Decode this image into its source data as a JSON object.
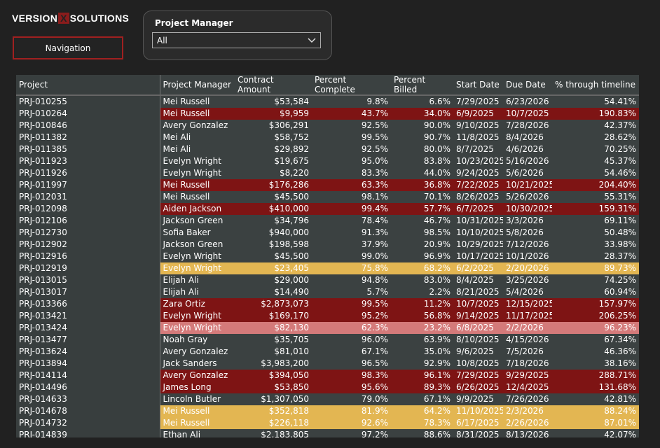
{
  "header": {
    "logo": [
      "VERSION",
      "X",
      "SOLUTIONS"
    ],
    "navigation_button": "Navigation"
  },
  "slicer": {
    "title": "Project Manager",
    "value": "All"
  },
  "table": {
    "columns": [
      "Project",
      "Project Manager",
      "Contract Amount",
      "Percent Complete",
      "Percent Billed",
      "Start Date",
      "Due Date",
      "% through timeline"
    ],
    "rows": [
      [
        "PRJ-010255",
        "Mei Russell",
        "$53,584",
        "9.8%",
        "6.6%",
        "7/29/2025",
        "6/23/2026",
        "54.41%"
      ],
      [
        "PRJ-010264",
        "Mei Russell",
        "$9,959",
        "43.7%",
        "34.0%",
        "6/9/2025",
        "10/7/2025",
        "190.83%"
      ],
      [
        "PRJ-010846",
        "Avery Gonzalez",
        "$306,291",
        "92.5%",
        "90.0%",
        "9/10/2025",
        "7/28/2026",
        "42.37%"
      ],
      [
        "PRJ-011382",
        "Mei Ali",
        "$58,752",
        "99.5%",
        "90.7%",
        "11/8/2025",
        "8/4/2026",
        "28.62%"
      ],
      [
        "PRJ-011385",
        "Mei Ali",
        "$29,892",
        "92.5%",
        "80.0%",
        "8/7/2025",
        "4/6/2026",
        "70.25%"
      ],
      [
        "PRJ-011923",
        "Evelyn Wright",
        "$19,675",
        "95.0%",
        "83.8%",
        "10/23/2025",
        "5/16/2026",
        "45.37%"
      ],
      [
        "PRJ-011926",
        "Evelyn Wright",
        "$8,220",
        "83.3%",
        "44.0%",
        "9/24/2025",
        "5/6/2026",
        "54.46%"
      ],
      [
        "PRJ-011997",
        "Mei Russell",
        "$176,286",
        "63.3%",
        "36.8%",
        "7/22/2025",
        "10/21/2025",
        "204.40%"
      ],
      [
        "PRJ-012031",
        "Mei Russell",
        "$45,500",
        "98.1%",
        "70.1%",
        "8/26/2025",
        "5/26/2026",
        "55.31%"
      ],
      [
        "PRJ-012098",
        "Aiden Jackson",
        "$410,000",
        "99.4%",
        "57.7%",
        "6/7/2025",
        "10/30/2025",
        "159.31%"
      ],
      [
        "PRJ-012106",
        "Jackson Green",
        "$34,796",
        "78.4%",
        "46.7%",
        "10/31/2025",
        "3/3/2026",
        "69.11%"
      ],
      [
        "PRJ-012730",
        "Sofia Baker",
        "$940,000",
        "91.3%",
        "98.5%",
        "10/10/2025",
        "5/8/2026",
        "50.48%"
      ],
      [
        "PRJ-012902",
        "Jackson Green",
        "$198,598",
        "37.9%",
        "20.9%",
        "10/29/2025",
        "7/12/2026",
        "33.98%"
      ],
      [
        "PRJ-012916",
        "Evelyn Wright",
        "$45,500",
        "99.0%",
        "96.9%",
        "10/17/2025",
        "10/1/2026",
        "28.37%"
      ],
      [
        "PRJ-012919",
        "Evelyn Wright",
        "$23,405",
        "75.8%",
        "68.2%",
        "6/2/2025",
        "2/20/2026",
        "89.73%"
      ],
      [
        "PRJ-013015",
        "Elijah Ali",
        "$29,000",
        "94.8%",
        "83.0%",
        "8/4/2025",
        "3/25/2026",
        "74.25%"
      ],
      [
        "PRJ-013017",
        "Elijah Ali",
        "$14,490",
        "5.7%",
        "2.2%",
        "8/21/2025",
        "5/4/2026",
        "60.94%"
      ],
      [
        "PRJ-013366",
        "Zara Ortiz",
        "$2,873,073",
        "99.5%",
        "11.2%",
        "10/7/2025",
        "12/15/2025",
        "157.97%"
      ],
      [
        "PRJ-013421",
        "Evelyn Wright",
        "$169,170",
        "95.2%",
        "56.8%",
        "9/14/2025",
        "11/17/2025",
        "206.25%"
      ],
      [
        "PRJ-013424",
        "Evelyn Wright",
        "$82,130",
        "62.3%",
        "23.2%",
        "6/8/2025",
        "2/2/2026",
        "96.23%"
      ],
      [
        "PRJ-013477",
        "Noah Gray",
        "$35,705",
        "96.0%",
        "63.9%",
        "8/10/2025",
        "4/15/2026",
        "67.34%"
      ],
      [
        "PRJ-013624",
        "Avery Gonzalez",
        "$81,010",
        "67.1%",
        "35.0%",
        "9/6/2025",
        "7/5/2026",
        "46.36%"
      ],
      [
        "PRJ-013894",
        "Jack Sanders",
        "$3,983,200",
        "96.5%",
        "92.9%",
        "10/8/2025",
        "7/18/2026",
        "38.16%"
      ],
      [
        "PRJ-014114",
        "Avery Gonzalez",
        "$394,050",
        "98.3%",
        "96.1%",
        "7/29/2025",
        "9/29/2025",
        "288.71%"
      ],
      [
        "PRJ-014496",
        "James Long",
        "$53,850",
        "95.6%",
        "89.3%",
        "6/26/2025",
        "12/4/2025",
        "131.68%"
      ],
      [
        "PRJ-014633",
        "Lincoln Butler",
        "$1,307,050",
        "79.0%",
        "67.1%",
        "9/9/2025",
        "7/26/2026",
        "42.81%"
      ],
      [
        "PRJ-014678",
        "Mei Russell",
        "$352,818",
        "81.9%",
        "64.2%",
        "11/10/2025",
        "2/3/2026",
        "88.24%"
      ],
      [
        "PRJ-014732",
        "Mei Russell",
        "$226,118",
        "92.6%",
        "78.3%",
        "6/17/2025",
        "2/26/2026",
        "87.01%"
      ],
      [
        "PRJ-014839",
        "Ethan Ali",
        "$2,183,805",
        "97.2%",
        "88.6%",
        "8/31/2025",
        "8/13/2026",
        "42.07%"
      ]
    ],
    "row_fills": [
      null,
      "#7e1414",
      null,
      null,
      null,
      null,
      null,
      "#7e1414",
      null,
      "#7e1414",
      null,
      null,
      null,
      null,
      "#e3b652",
      null,
      null,
      "#7e1414",
      "#7e1414",
      "#d47a7a",
      null,
      null,
      null,
      "#7e1414",
      "#7e1414",
      null,
      "#e3b652",
      "#e3b652",
      null
    ]
  }
}
